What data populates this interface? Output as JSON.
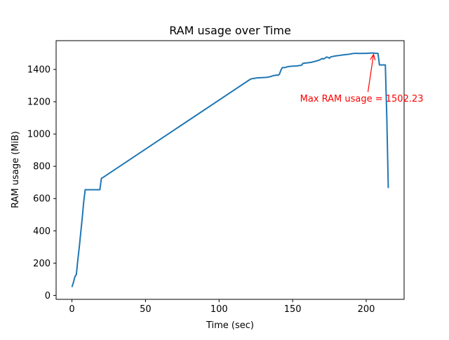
{
  "chart_data": {
    "type": "line",
    "title": "RAM usage over Time",
    "xlabel": "Time (sec)",
    "ylabel": "RAM usage (MiB)",
    "xlim": [
      -10.75,
      225.75
    ],
    "ylim": [
      -24.5,
      1578.5
    ],
    "xticks": [
      0,
      50,
      100,
      150,
      200
    ],
    "yticks": [
      0,
      200,
      400,
      600,
      800,
      1000,
      1200,
      1400
    ],
    "grid": false,
    "legend": "none",
    "colors": {
      "line": "#1f77b4",
      "annotation": "#ff0000",
      "axes": "#000000"
    },
    "series": [
      {
        "x": [
          0,
          1,
          2,
          3,
          4,
          5,
          6,
          7,
          8,
          9,
          10,
          11,
          15,
          19,
          20,
          21,
          121,
          122,
          124,
          126,
          128,
          130,
          132,
          133,
          134,
          135,
          137,
          139,
          140,
          141,
          142,
          143,
          145,
          147,
          149,
          151,
          153,
          155,
          156,
          157,
          159,
          161,
          163,
          165,
          166,
          167,
          168,
          169,
          170,
          171,
          172,
          173,
          174,
          175,
          176,
          177,
          178,
          180,
          182,
          184,
          186,
          188,
          190,
          192,
          194,
          196,
          198,
          200,
          202,
          204,
          205,
          206,
          207,
          208,
          209,
          210,
          211,
          212,
          213,
          214,
          215
        ],
        "y": [
          52,
          80,
          115,
          130,
          220,
          300,
          390,
          480,
          580,
          655,
          655,
          655,
          655,
          655,
          725,
          730,
          1338,
          1342,
          1345,
          1348,
          1349,
          1350,
          1351,
          1352,
          1354,
          1356,
          1362,
          1365,
          1364,
          1370,
          1395,
          1412,
          1412,
          1418,
          1420,
          1421,
          1422,
          1425,
          1426,
          1438,
          1440,
          1442,
          1445,
          1450,
          1452,
          1455,
          1458,
          1462,
          1468,
          1465,
          1470,
          1477,
          1475,
          1470,
          1478,
          1480,
          1482,
          1485,
          1487,
          1490,
          1492,
          1494,
          1497,
          1500,
          1500,
          1499,
          1500,
          1500,
          1501,
          1502,
          1502.23,
          1500,
          1500,
          1500,
          1428,
          1428,
          1428,
          1428,
          1428,
          1100,
          665
        ]
      }
    ],
    "annotation": {
      "text": "Max RAM usage = 1502.23",
      "point": [
        205,
        1502.23
      ],
      "text_at": [
        155,
        1200
      ]
    }
  }
}
